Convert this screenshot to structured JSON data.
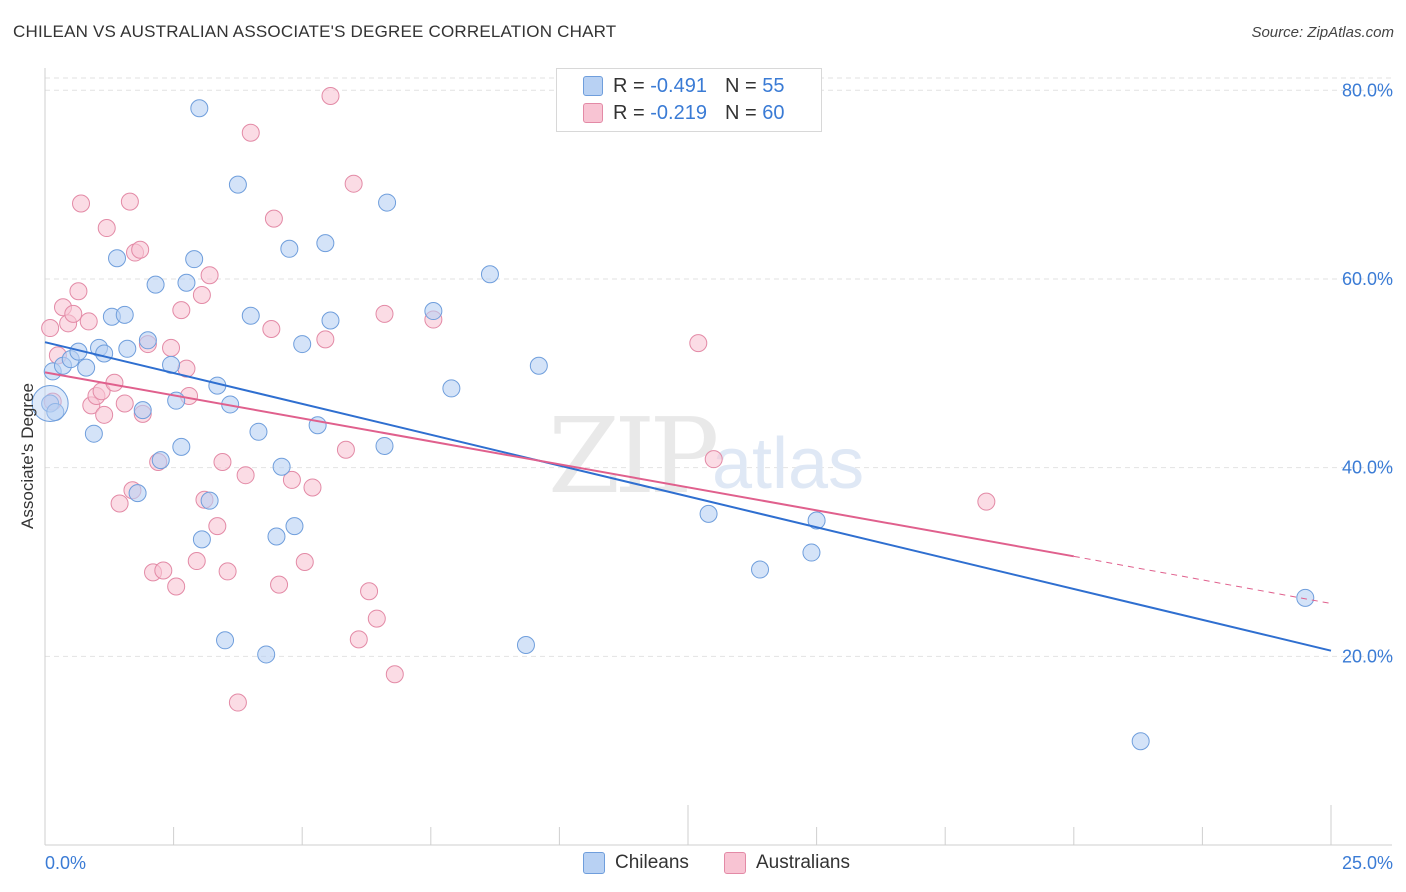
{
  "header": {
    "title": "CHILEAN VS AUSTRALIAN ASSOCIATE'S DEGREE CORRELATION CHART",
    "source": "Source: ZipAtlas.com"
  },
  "legend": {
    "rows": [
      {
        "r_label": "R =",
        "r_value": "-0.491",
        "n_label": "N =",
        "n_value": "55"
      },
      {
        "r_label": "R =",
        "r_value": "-0.219",
        "n_label": "N =",
        "n_value": "60"
      }
    ]
  },
  "watermark": {
    "zip": "ZIP",
    "atlas": "atlas"
  },
  "chart_data": {
    "type": "scatter",
    "title": "CHILEAN VS AUSTRALIAN ASSOCIATE'S DEGREE CORRELATION CHART",
    "xlabel": "",
    "ylabel": "Associate's Degree",
    "xlim": [
      0,
      25
    ],
    "ylim": [
      0,
      83
    ],
    "x_tick_labels": [
      "0.0%",
      "25.0%"
    ],
    "y_ticks": [
      20,
      40,
      60,
      80
    ],
    "y_tick_labels": [
      "20.0%",
      "40.0%",
      "60.0%",
      "80.0%"
    ],
    "grid": true,
    "legend_position": "top-center",
    "colors": {
      "chileans_fill": "#b8d1f3",
      "chileans_stroke": "#6f9edc",
      "chileans_line": "#2f6fd0",
      "australians_fill": "#f8c4d3",
      "australians_stroke": "#e38aa6",
      "australians_line": "#e0608d",
      "axis_label": "#3a7bd5",
      "grid": "#e2e2e2"
    },
    "series": [
      {
        "name": "Chileans",
        "r": -0.491,
        "n": 55,
        "trend": {
          "x0": 0,
          "y0": 53.3,
          "x1": 25,
          "y1": 20.6
        },
        "points": [
          [
            0.15,
            50.2
          ],
          [
            0.35,
            50.8
          ],
          [
            0.5,
            51.5
          ],
          [
            0.65,
            52.3
          ],
          [
            0.8,
            50.6
          ],
          [
            0.95,
            43.6
          ],
          [
            1.05,
            52.7
          ],
          [
            1.15,
            52.1
          ],
          [
            1.3,
            56.0
          ],
          [
            1.4,
            62.2
          ],
          [
            1.55,
            56.2
          ],
          [
            1.6,
            52.6
          ],
          [
            1.8,
            37.3
          ],
          [
            1.9,
            46.1
          ],
          [
            2.0,
            53.5
          ],
          [
            2.15,
            59.4
          ],
          [
            2.25,
            40.8
          ],
          [
            2.45,
            50.9
          ],
          [
            2.55,
            47.1
          ],
          [
            2.65,
            42.2
          ],
          [
            2.75,
            59.6
          ],
          [
            2.9,
            62.1
          ],
          [
            3.0,
            78.1
          ],
          [
            3.05,
            32.4
          ],
          [
            3.2,
            36.5
          ],
          [
            3.35,
            48.7
          ],
          [
            3.5,
            21.7
          ],
          [
            3.6,
            46.7
          ],
          [
            3.75,
            70.0
          ],
          [
            4.0,
            56.1
          ],
          [
            4.15,
            43.8
          ],
          [
            4.3,
            20.2
          ],
          [
            4.5,
            32.7
          ],
          [
            4.6,
            40.1
          ],
          [
            4.75,
            63.2
          ],
          [
            4.85,
            33.8
          ],
          [
            5.0,
            53.1
          ],
          [
            5.3,
            44.5
          ],
          [
            5.45,
            63.8
          ],
          [
            5.55,
            55.6
          ],
          [
            6.6,
            42.3
          ],
          [
            6.65,
            68.1
          ],
          [
            7.55,
            56.6
          ],
          [
            7.9,
            48.4
          ],
          [
            8.65,
            60.5
          ],
          [
            9.35,
            21.2
          ],
          [
            9.6,
            50.8
          ],
          [
            12.9,
            35.1
          ],
          [
            13.9,
            29.2
          ],
          [
            14.9,
            31.0
          ],
          [
            15.0,
            34.4
          ],
          [
            21.3,
            11.0
          ],
          [
            24.5,
            26.2
          ],
          [
            0.1,
            46.8
          ],
          [
            0.2,
            45.9
          ]
        ]
      },
      {
        "name": "Australians",
        "r": -0.219,
        "n": 60,
        "trend": {
          "x0": 0,
          "y0": 50.1,
          "x1": 20,
          "y1": 30.6,
          "dashed_to_x": 25,
          "dashed_to_y": 25.6
        },
        "points": [
          [
            0.1,
            54.8
          ],
          [
            0.25,
            51.9
          ],
          [
            0.35,
            57.0
          ],
          [
            0.45,
            55.3
          ],
          [
            0.55,
            56.3
          ],
          [
            0.65,
            58.7
          ],
          [
            0.7,
            68.0
          ],
          [
            0.85,
            55.5
          ],
          [
            0.9,
            46.6
          ],
          [
            1.0,
            47.6
          ],
          [
            1.1,
            48.1
          ],
          [
            1.15,
            45.6
          ],
          [
            1.2,
            65.4
          ],
          [
            1.35,
            49.0
          ],
          [
            1.45,
            36.2
          ],
          [
            1.55,
            46.8
          ],
          [
            1.65,
            68.2
          ],
          [
            1.7,
            37.6
          ],
          [
            1.75,
            62.8
          ],
          [
            1.85,
            63.1
          ],
          [
            1.9,
            45.7
          ],
          [
            2.0,
            53.1
          ],
          [
            2.1,
            28.9
          ],
          [
            2.2,
            40.6
          ],
          [
            2.3,
            29.1
          ],
          [
            2.45,
            52.7
          ],
          [
            2.55,
            27.4
          ],
          [
            2.65,
            56.7
          ],
          [
            2.75,
            50.5
          ],
          [
            2.8,
            47.6
          ],
          [
            2.95,
            30.1
          ],
          [
            3.05,
            58.3
          ],
          [
            3.1,
            36.6
          ],
          [
            3.2,
            60.4
          ],
          [
            3.35,
            33.8
          ],
          [
            3.45,
            40.6
          ],
          [
            3.55,
            29.0
          ],
          [
            3.75,
            15.1
          ],
          [
            3.9,
            39.2
          ],
          [
            4.0,
            75.5
          ],
          [
            4.4,
            54.7
          ],
          [
            4.45,
            66.4
          ],
          [
            4.55,
            27.6
          ],
          [
            4.8,
            38.7
          ],
          [
            5.05,
            30.0
          ],
          [
            5.2,
            37.9
          ],
          [
            5.45,
            53.6
          ],
          [
            5.55,
            79.4
          ],
          [
            5.85,
            41.9
          ],
          [
            6.0,
            70.1
          ],
          [
            6.1,
            21.8
          ],
          [
            6.3,
            26.9
          ],
          [
            6.45,
            24.0
          ],
          [
            6.6,
            56.3
          ],
          [
            6.8,
            18.1
          ],
          [
            7.55,
            55.7
          ],
          [
            12.7,
            53.2
          ],
          [
            13.0,
            40.9
          ],
          [
            18.3,
            36.4
          ],
          [
            0.15,
            47.0
          ]
        ]
      }
    ]
  },
  "bottom_legend": {
    "items": [
      "Chileans",
      "Australians"
    ]
  }
}
